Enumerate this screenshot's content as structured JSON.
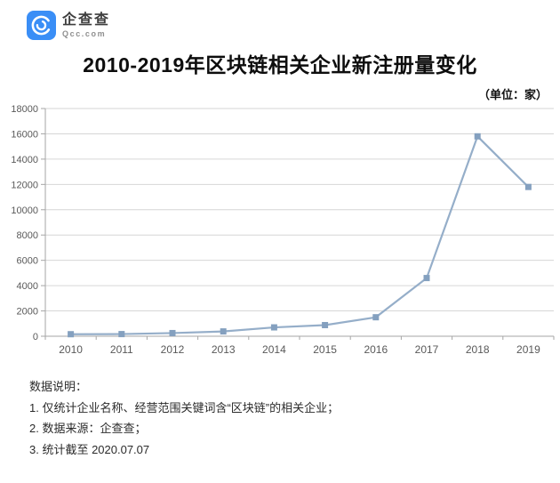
{
  "logo": {
    "brand": "企查查",
    "domain": "Qcc.com"
  },
  "title": "2010-2019年区块链相关企业新注册量变化",
  "unit_label": "（单位：家）",
  "chart_data": {
    "type": "line",
    "title": "2010-2019年区块链相关企业新注册量变化",
    "unit": "家",
    "categories": [
      "2010",
      "2011",
      "2012",
      "2013",
      "2014",
      "2015",
      "2016",
      "2017",
      "2018",
      "2019"
    ],
    "series": [
      {
        "name": "区块链相关企业新注册量",
        "values": [
          160,
          170,
          250,
          380,
          700,
          880,
          1500,
          4600,
          15800,
          11800
        ]
      }
    ],
    "ylim": [
      0,
      18000
    ],
    "ytick_step": 2000,
    "grid": true,
    "legend": "none",
    "marker": "square",
    "line_color": "#95aec9",
    "marker_color": "#84a0bf",
    "grid_color": "#d6d6d6",
    "axis_color": "#a6a6a6",
    "tick_label_color": "#595959"
  },
  "notes": {
    "heading": "数据说明：",
    "items": [
      "1. 仅统计企业名称、经营范围关键词含“区块链”的相关企业；",
      "2. 数据来源：企查查；",
      "3. 统计截至 2020.07.07"
    ]
  }
}
